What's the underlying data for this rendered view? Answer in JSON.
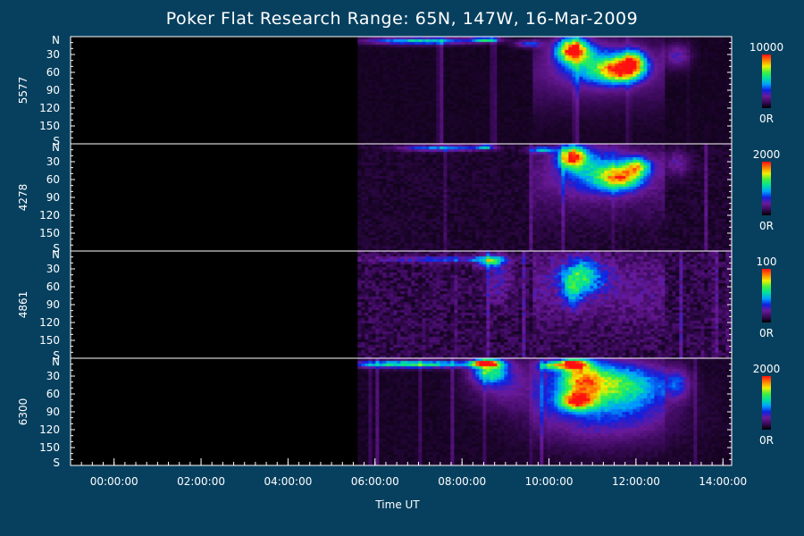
{
  "title": "Poker Flat Research Range: 65N, 147W, 16-Mar-2009",
  "chart_data": {
    "type": "heatmap",
    "title": "Poker Flat Research Range: 65N, 147W, 16-Mar-2009",
    "xlabel": "Time UT",
    "x_ticks": [
      "00:00:00",
      "02:00:00",
      "04:00:00",
      "06:00:00",
      "08:00:00",
      "10:00:00",
      "12:00:00",
      "14:00:00"
    ],
    "x_range_hours": [
      -1.0,
      14.2
    ],
    "data_start_hour": 5.6,
    "y_tick_labels": [
      "N",
      "30",
      "60",
      "90",
      "120",
      "150",
      "S"
    ],
    "y_range": [
      0,
      180
    ],
    "colormap": [
      "#000000",
      "#3a0a5a",
      "#6a1a9a",
      "#1020e0",
      "#00a0ff",
      "#00e0a0",
      "#40f040",
      "#f0f000",
      "#ff8000",
      "#ff1010"
    ],
    "panels": [
      {
        "wavelength": "5577",
        "scale_max": "10000",
        "scale_min": "0R",
        "noise": 0.02,
        "features": [
          {
            "t": 7.0,
            "lat": 5,
            "w": 1.2,
            "h": 6,
            "i": 0.55
          },
          {
            "t": 8.5,
            "lat": 3,
            "w": 0.3,
            "h": 4,
            "i": 0.6
          },
          {
            "t": 10.5,
            "lat": 20,
            "w": 0.35,
            "h": 20,
            "i": 0.95
          },
          {
            "t": 11.0,
            "lat": 45,
            "w": 0.8,
            "h": 35,
            "i": 0.4
          },
          {
            "t": 11.6,
            "lat": 55,
            "w": 0.5,
            "h": 20,
            "i": 0.75
          },
          {
            "t": 11.9,
            "lat": 40,
            "w": 0.3,
            "h": 20,
            "i": 0.6
          },
          {
            "t": 12.9,
            "lat": 30,
            "w": 0.3,
            "h": 20,
            "i": 0.25
          },
          {
            "t": 9.5,
            "lat": 10,
            "w": 0.3,
            "h": 6,
            "i": 0.35
          }
        ]
      },
      {
        "wavelength": "4278",
        "scale_max": "2000",
        "scale_min": "0R",
        "noise": 0.05,
        "features": [
          {
            "t": 7.5,
            "lat": 5,
            "w": 0.9,
            "h": 5,
            "i": 0.45
          },
          {
            "t": 8.5,
            "lat": 3,
            "w": 0.2,
            "h": 4,
            "i": 0.5
          },
          {
            "t": 9.8,
            "lat": 8,
            "w": 0.3,
            "h": 5,
            "i": 0.45
          },
          {
            "t": 10.5,
            "lat": 20,
            "w": 0.3,
            "h": 18,
            "i": 0.9
          },
          {
            "t": 11.6,
            "lat": 55,
            "w": 0.5,
            "h": 20,
            "i": 0.7
          },
          {
            "t": 11.0,
            "lat": 40,
            "w": 0.8,
            "h": 40,
            "i": 0.35
          },
          {
            "t": 12.0,
            "lat": 35,
            "w": 0.3,
            "h": 15,
            "i": 0.55
          },
          {
            "t": 12.9,
            "lat": 30,
            "w": 0.3,
            "h": 20,
            "i": 0.2
          }
        ]
      },
      {
        "wavelength": "4861",
        "scale_max": "100",
        "scale_min": "0R",
        "noise": 0.12,
        "features": [
          {
            "t": 7.5,
            "lat": 12,
            "w": 1.6,
            "h": 5,
            "i": 0.3
          },
          {
            "t": 8.6,
            "lat": 15,
            "w": 0.3,
            "h": 10,
            "i": 0.45
          },
          {
            "t": 8.8,
            "lat": 45,
            "w": 0.3,
            "h": 40,
            "i": 0.18
          },
          {
            "t": 10.7,
            "lat": 40,
            "w": 0.5,
            "h": 30,
            "i": 0.5
          },
          {
            "t": 10.5,
            "lat": 70,
            "w": 0.2,
            "h": 25,
            "i": 0.25
          }
        ]
      },
      {
        "wavelength": "6300",
        "scale_max": "2000",
        "scale_min": "0R",
        "noise": 0.03,
        "features": [
          {
            "t": 6.8,
            "lat": 8,
            "w": 1.4,
            "h": 6,
            "i": 0.7
          },
          {
            "t": 8.5,
            "lat": 6,
            "w": 0.3,
            "h": 6,
            "i": 0.95
          },
          {
            "t": 8.6,
            "lat": 20,
            "w": 0.4,
            "h": 20,
            "i": 0.55
          },
          {
            "t": 9.0,
            "lat": 40,
            "w": 0.8,
            "h": 40,
            "i": 0.2
          },
          {
            "t": 10.0,
            "lat": 10,
            "w": 0.3,
            "h": 8,
            "i": 0.5
          },
          {
            "t": 10.5,
            "lat": 8,
            "w": 0.3,
            "h": 8,
            "i": 0.95
          },
          {
            "t": 10.7,
            "lat": 30,
            "w": 0.5,
            "h": 30,
            "i": 0.6
          },
          {
            "t": 10.6,
            "lat": 70,
            "w": 0.4,
            "h": 15,
            "i": 0.7
          },
          {
            "t": 11.5,
            "lat": 40,
            "w": 1.0,
            "h": 35,
            "i": 0.5
          },
          {
            "t": 11.2,
            "lat": 90,
            "w": 1.5,
            "h": 50,
            "i": 0.25
          },
          {
            "t": 12.9,
            "lat": 40,
            "w": 0.3,
            "h": 25,
            "i": 0.3
          }
        ]
      }
    ]
  }
}
